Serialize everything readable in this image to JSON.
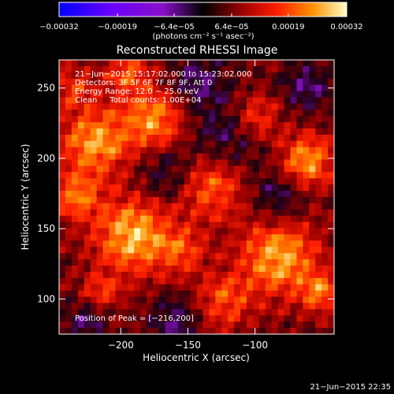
{
  "chart_data": {
    "type": "heatmap",
    "title": "Reconstructed RHESSI Image",
    "xlabel": "Heliocentric X (arcsec)",
    "ylabel": "Heliocentric Y (arcsec)",
    "xlim": [
      -246,
      -41
    ],
    "ylim": [
      75,
      270
    ],
    "x_ticks": [
      -200,
      -150,
      -100
    ],
    "y_ticks": [
      100,
      150,
      200,
      250
    ],
    "x_tick_labels": [
      "−200",
      "−150",
      "−100"
    ],
    "y_tick_labels": [
      "100",
      "150",
      "200",
      "250"
    ],
    "colorbar": {
      "range": [
        -0.00032,
        0.00032
      ],
      "ticks": [
        -0.00032,
        -0.00019,
        -6.4e-05,
        6.4e-05,
        0.00019,
        0.00032
      ],
      "tick_labels": [
        "−0.00032",
        "−0.00019",
        "−6.4e−05",
        "6.4e−05",
        "0.00019",
        "0.00032"
      ],
      "unit_label": "(photons cm⁻² s⁻¹ asec⁻²)"
    },
    "annotations": [
      "21−Jun−2015 15:17:02.000 to 15:23:02.000",
      "Detectors: 3F 5F 6F 7F 8F 9F, Att 0",
      "Energy Range: 12.0 − 25.0 keV",
      "Clean     Total counts: 1.00E+04"
    ],
    "peak_label": "Position of Peak = [−216,200]",
    "peak": [
      -216,
      200
    ],
    "grid": false,
    "colors": {
      "background": "#000000",
      "frame": "#ffffff",
      "text": "#ffffff"
    }
  },
  "footer": {
    "timestamp": "21−Jun−2015 22:35"
  }
}
